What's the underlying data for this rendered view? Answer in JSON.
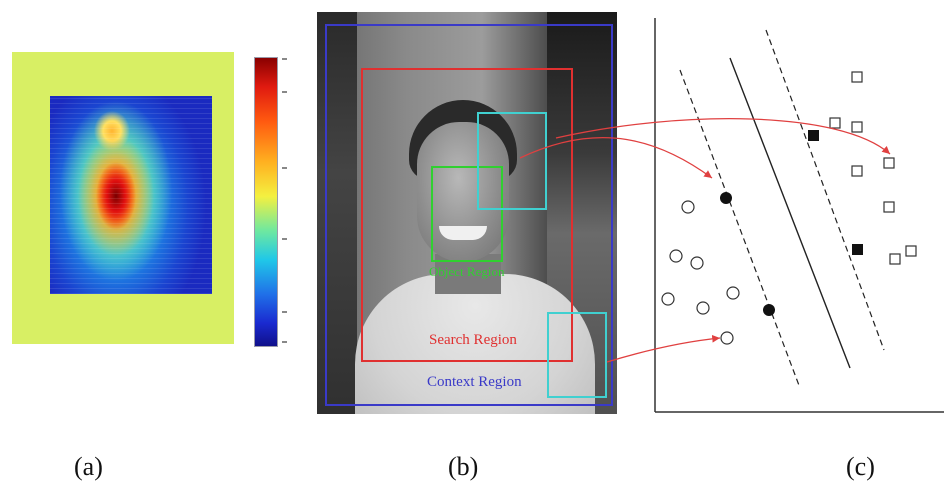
{
  "panels": {
    "a": {
      "label": "(a)",
      "colorbar_ticks": 6,
      "colors": {
        "background": "#d8ef64",
        "high": "#8a0000",
        "low": "#10108a"
      }
    },
    "b": {
      "label": "(b)",
      "regions": {
        "search": {
          "label": "Search Region",
          "color": "#e03030"
        },
        "context": {
          "label": "Context Region",
          "color": "#3a3ac8"
        },
        "object": {
          "label": "Object Region",
          "color": "#30d030"
        },
        "patch_color": "#40d0d0"
      }
    },
    "c": {
      "label": "(c)",
      "marker_styles": [
        "open-circle",
        "filled-circle",
        "open-square",
        "filled-square"
      ],
      "line_styles": [
        "solid",
        "dashed"
      ]
    }
  },
  "arrow_color": "#e04040"
}
